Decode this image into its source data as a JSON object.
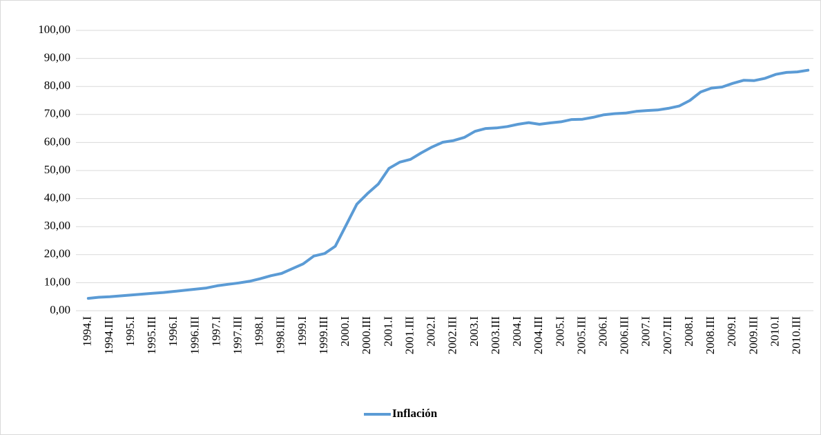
{
  "chart_data": {
    "type": "line",
    "categories": [
      "1994.I",
      null,
      "1994.III",
      null,
      "1995.I",
      null,
      "1995.III",
      null,
      "1996.I",
      null,
      "1996.III",
      null,
      "1997.I",
      null,
      "1997.III",
      null,
      "1998.I",
      null,
      "1998.III",
      null,
      "1999.I",
      null,
      "1999.III",
      null,
      "2000.I",
      null,
      "2000.III",
      null,
      "2001.I",
      null,
      "2001.III",
      null,
      "2002.I",
      null,
      "2002.III",
      null,
      "2003.I",
      null,
      "2003.III",
      null,
      "2004.I",
      null,
      "2004.III",
      null,
      "2005.I",
      null,
      "2005.III",
      null,
      "2006.I",
      null,
      "2006.III",
      null,
      "2007.I",
      null,
      "2007.III",
      null,
      "2008.I",
      null,
      "2008.III",
      null,
      "2009.I",
      null,
      "2009.III",
      null,
      "2010.I",
      null,
      "2010.III",
      null
    ],
    "series": [
      {
        "name": "Inflación",
        "color": "#5b9bd5",
        "values": [
          4.4,
          4.8,
          5.0,
          5.3,
          5.6,
          5.9,
          6.2,
          6.5,
          6.9,
          7.3,
          7.7,
          8.1,
          8.9,
          9.4,
          9.9,
          10.5,
          11.4,
          12.5,
          13.3,
          15.0,
          16.7,
          19.5,
          20.4,
          23.0,
          30.5,
          38.0,
          41.8,
          45.2,
          50.8,
          53.0,
          54.0,
          56.3,
          58.4,
          60.1,
          60.7,
          61.8,
          64.0,
          65.0,
          65.2,
          65.7,
          66.5,
          67.1,
          66.5,
          67.0,
          67.4,
          68.2,
          68.3,
          69.0,
          69.9,
          70.3,
          70.5,
          71.1,
          71.4,
          71.6,
          72.2,
          73.0,
          75.0,
          78.0,
          79.4,
          79.8,
          81.1,
          82.2,
          82.1,
          82.9,
          84.3,
          85.0,
          85.2,
          85.8
        ]
      }
    ],
    "ylim": [
      0,
      100
    ],
    "yticks": [
      {
        "value": 0,
        "label": "0,00"
      },
      {
        "value": 10,
        "label": "10,00"
      },
      {
        "value": 20,
        "label": "20,00"
      },
      {
        "value": 30,
        "label": "30,00"
      },
      {
        "value": 40,
        "label": "40,00"
      },
      {
        "value": 50,
        "label": "50,00"
      },
      {
        "value": 60,
        "label": "60,00"
      },
      {
        "value": 70,
        "label": "70,00"
      },
      {
        "value": 80,
        "label": "80,00"
      },
      {
        "value": 90,
        "label": "90,00"
      },
      {
        "value": 100,
        "label": "100,00"
      }
    ],
    "grid": true,
    "legend": "bottom"
  }
}
